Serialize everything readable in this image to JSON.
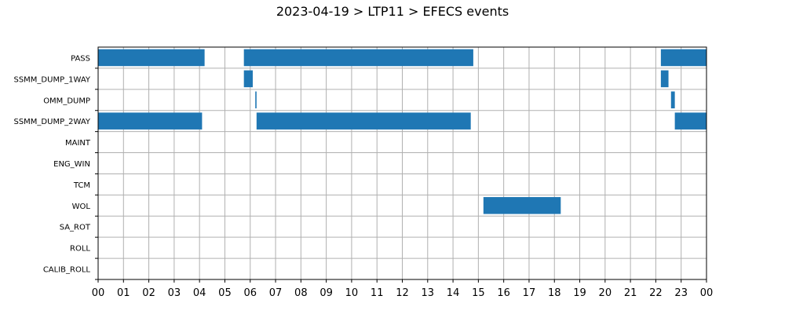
{
  "chart_data": {
    "type": "bar",
    "orientation": "horizontal-timeline",
    "title": "2023-04-19 > LTP11 > EFECS events",
    "xlabel": "",
    "ylabel": "",
    "x_unit": "hour",
    "xlim": [
      0,
      24
    ],
    "x_tick_labels": [
      "00",
      "01",
      "02",
      "03",
      "04",
      "05",
      "06",
      "07",
      "08",
      "09",
      "10",
      "11",
      "12",
      "13",
      "14",
      "15",
      "16",
      "17",
      "18",
      "19",
      "20",
      "21",
      "22",
      "23",
      "00"
    ],
    "grid": true,
    "bar_color": "#1f77b4",
    "categories": [
      "PASS",
      "SSMM_DUMP_1WAY",
      "OMM_DUMP",
      "SSMM_DUMP_2WAY",
      "MAINT",
      "ENG_WIN",
      "TCM",
      "WOL",
      "SA_ROT",
      "ROLL",
      "CALIB_ROLL"
    ],
    "events": [
      {
        "category": "PASS",
        "start": 0.0,
        "end": 4.2
      },
      {
        "category": "PASS",
        "start": 5.75,
        "end": 14.8
      },
      {
        "category": "PASS",
        "start": 22.2,
        "end": 24.0
      },
      {
        "category": "SSMM_DUMP_1WAY",
        "start": 5.75,
        "end": 6.1
      },
      {
        "category": "SSMM_DUMP_1WAY",
        "start": 22.2,
        "end": 22.5
      },
      {
        "category": "OMM_DUMP",
        "start": 6.2,
        "end": 6.25
      },
      {
        "category": "OMM_DUMP",
        "start": 22.6,
        "end": 22.75
      },
      {
        "category": "SSMM_DUMP_2WAY",
        "start": 0.0,
        "end": 4.1
      },
      {
        "category": "SSMM_DUMP_2WAY",
        "start": 6.25,
        "end": 14.7
      },
      {
        "category": "SSMM_DUMP_2WAY",
        "start": 22.75,
        "end": 24.0
      },
      {
        "category": "WOL",
        "start": 15.2,
        "end": 18.25
      }
    ]
  }
}
